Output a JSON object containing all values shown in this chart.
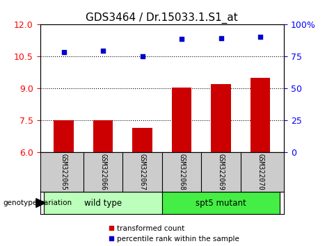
{
  "title": "GDS3464 / Dr.15033.1.S1_at",
  "samples": [
    "GSM322065",
    "GSM322066",
    "GSM322067",
    "GSM322068",
    "GSM322069",
    "GSM322070"
  ],
  "red_bars": [
    7.5,
    7.5,
    7.15,
    9.05,
    9.2,
    9.5
  ],
  "blue_squares_left": [
    10.72,
    10.76,
    10.5,
    11.32,
    11.37,
    11.42
  ],
  "ylim_left": [
    6,
    12
  ],
  "yticks_left": [
    6,
    7.5,
    9,
    10.5,
    12
  ],
  "ylim_right": [
    0,
    100
  ],
  "yticks_right": [
    0,
    25,
    50,
    75,
    100
  ],
  "bar_color": "#cc0000",
  "square_color": "#0000cc",
  "grid_color": "black",
  "bg_color": "#ffffff",
  "label_transformed": "transformed count",
  "label_percentile": "percentile rank within the sample",
  "genotype_label": "genotype/variation",
  "wt_label": "wild type",
  "spt_label": "spt5 mutant",
  "wt_color": "#bbffbb",
  "spt_color": "#44ee44",
  "sample_box_color": "#cccccc",
  "title_fontsize": 11,
  "tick_fontsize": 9,
  "bar_width": 0.5
}
